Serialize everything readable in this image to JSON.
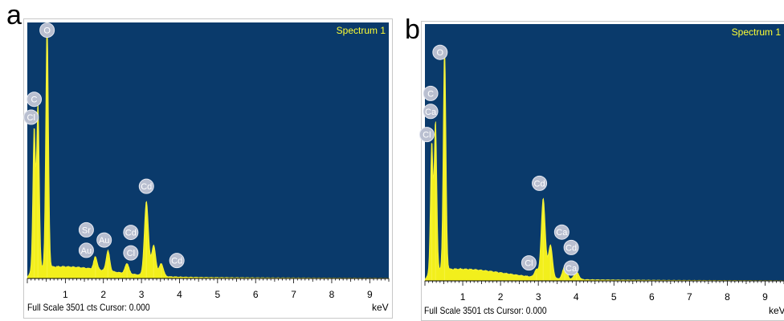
{
  "chart_data": [
    {
      "type": "line",
      "panel": "a",
      "spectrum_label": "Spectrum 1",
      "xlabel": "keV",
      "footer": "Full Scale 3501 cts Cursor: 0.000",
      "xlim": [
        0,
        9.5
      ],
      "ticks": [
        "1",
        "2",
        "3",
        "4",
        "5",
        "6",
        "7",
        "8",
        "9"
      ],
      "peaks": [
        {
          "x": 0.18,
          "y": 0.55
        },
        {
          "x": 0.28,
          "y": 0.64
        },
        {
          "x": 0.52,
          "y": 0.96
        },
        {
          "x": 1.79,
          "y": 0.05
        },
        {
          "x": 2.12,
          "y": 0.08
        },
        {
          "x": 2.62,
          "y": 0.04
        },
        {
          "x": 3.13,
          "y": 0.29
        },
        {
          "x": 3.32,
          "y": 0.12
        },
        {
          "x": 3.52,
          "y": 0.05
        }
      ],
      "labels": [
        {
          "text": "O",
          "x": 0.52,
          "y": 0.97
        },
        {
          "text": "C",
          "x": 0.18,
          "y": 0.7
        },
        {
          "text": "Cl",
          "x": 0.1,
          "y": 0.63
        },
        {
          "text": "Cd",
          "x": 3.13,
          "y": 0.36
        },
        {
          "text": "Sr",
          "x": 1.55,
          "y": 0.19
        },
        {
          "text": "Au",
          "x": 1.55,
          "y": 0.11
        },
        {
          "text": "Au",
          "x": 2.02,
          "y": 0.15
        },
        {
          "text": "Cd",
          "x": 2.72,
          "y": 0.18
        },
        {
          "text": "Cl",
          "x": 2.72,
          "y": 0.1
        },
        {
          "text": "Cd",
          "x": 3.93,
          "y": 0.07
        }
      ]
    },
    {
      "type": "line",
      "panel": "b",
      "spectrum_label": "Spectrum 1",
      "xlabel": "keV",
      "footer": "Full Scale 3501 cts Cursor: 0.000",
      "xlim": [
        0,
        9.5
      ],
      "ticks": [
        "1",
        "2",
        "3",
        "4",
        "5",
        "6",
        "7",
        "8",
        "9"
      ],
      "peaks": [
        {
          "x": 0.18,
          "y": 0.5
        },
        {
          "x": 0.28,
          "y": 0.58
        },
        {
          "x": 0.52,
          "y": 0.87
        },
        {
          "x": 2.95,
          "y": 0.03
        },
        {
          "x": 3.13,
          "y": 0.31
        },
        {
          "x": 3.32,
          "y": 0.13
        },
        {
          "x": 3.7,
          "y": 0.05
        },
        {
          "x": 4.01,
          "y": 0.03
        }
      ],
      "labels": [
        {
          "text": "O",
          "x": 0.4,
          "y": 0.89
        },
        {
          "text": "C",
          "x": 0.15,
          "y": 0.73
        },
        {
          "text": "Ca",
          "x": 0.15,
          "y": 0.66
        },
        {
          "text": "Cl",
          "x": 0.05,
          "y": 0.57
        },
        {
          "text": "Cd",
          "x": 3.03,
          "y": 0.38
        },
        {
          "text": "Ca",
          "x": 3.62,
          "y": 0.19
        },
        {
          "text": "Cd",
          "x": 3.87,
          "y": 0.13
        },
        {
          "text": "Cl",
          "x": 2.75,
          "y": 0.07
        },
        {
          "text": "Ca",
          "x": 3.87,
          "y": 0.05
        }
      ]
    }
  ]
}
